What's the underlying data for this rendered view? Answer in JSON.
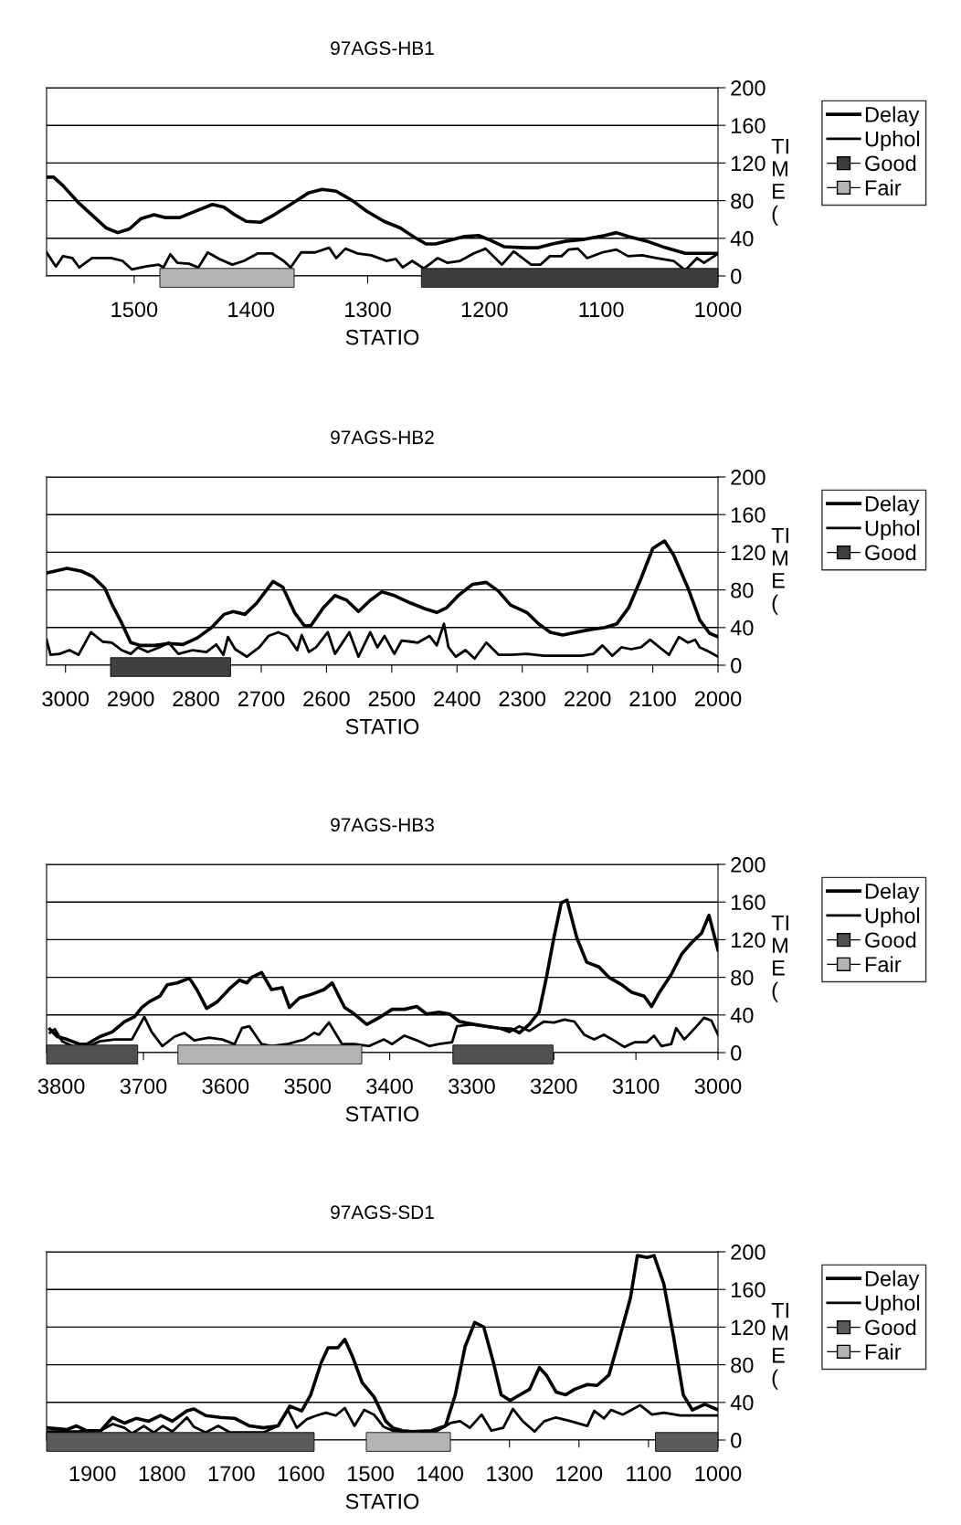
{
  "chart_data": [
    {
      "type": "line",
      "title": "97AGS-HB1",
      "xlabel": "STATIO",
      "ylabel": "TI\nM\nE\n(",
      "xlim": [
        1575,
        1000
      ],
      "xticks": [
        1500,
        1400,
        1300,
        1200,
        1100,
        1000
      ],
      "ylim": [
        0,
        200
      ],
      "yticks": [
        0,
        40,
        80,
        120,
        160,
        200
      ],
      "grid": "y",
      "legend": "right",
      "series": [
        {
          "name": "Delay",
          "color": "#000000",
          "x": [
            1575,
            1569,
            1561,
            1547,
            1532,
            1524,
            1514,
            1504,
            1494,
            1483,
            1473,
            1461,
            1447,
            1433,
            1423,
            1414,
            1404,
            1392,
            1380,
            1366,
            1351,
            1339,
            1327,
            1313,
            1301,
            1286,
            1272,
            1260,
            1250,
            1242,
            1229,
            1217,
            1205,
            1195,
            1183,
            1166,
            1154,
            1142,
            1130,
            1114,
            1097,
            1087,
            1077,
            1061,
            1045,
            1028,
            1016,
            1001
          ],
          "values": [
            105,
            105,
            96,
            77,
            60,
            51,
            46,
            50,
            61,
            65,
            62,
            62,
            69,
            76,
            73,
            65,
            58,
            57,
            65,
            76,
            88,
            92,
            90,
            80,
            69,
            58,
            51,
            41,
            34,
            34,
            38,
            42,
            43,
            38,
            31,
            30,
            30,
            34,
            37,
            39,
            43,
            46,
            42,
            37,
            30,
            24,
            24,
            24
          ]
        },
        {
          "name": "Uphol",
          "color": "#000000",
          "x": [
            1575,
            1567,
            1561,
            1553,
            1547,
            1536,
            1520,
            1510,
            1502,
            1490,
            1479,
            1475,
            1469,
            1463,
            1453,
            1445,
            1437,
            1427,
            1416,
            1406,
            1394,
            1382,
            1372,
            1366,
            1357,
            1345,
            1333,
            1327,
            1319,
            1309,
            1297,
            1284,
            1276,
            1270,
            1262,
            1252,
            1240,
            1232,
            1221,
            1209,
            1199,
            1185,
            1175,
            1160,
            1152,
            1144,
            1134,
            1128,
            1120,
            1112,
            1099,
            1087,
            1077,
            1065,
            1053,
            1038,
            1028,
            1018,
            1012,
            1001
          ],
          "values": [
            25,
            10,
            21,
            19,
            9,
            19,
            19,
            16,
            7,
            10,
            12,
            9,
            23,
            14,
            13,
            9,
            25,
            18,
            12,
            16,
            24,
            24,
            16,
            9,
            25,
            25,
            30,
            19,
            29,
            24,
            22,
            16,
            18,
            9,
            16,
            8,
            19,
            14,
            16,
            24,
            29,
            12,
            26,
            12,
            12,
            21,
            21,
            28,
            29,
            19,
            25,
            28,
            21,
            22,
            19,
            16,
            6,
            19,
            14,
            23
          ]
        }
      ],
      "bands": [
        {
          "axis": "x",
          "from": 1254,
          "to": 1000,
          "label": "Good",
          "color": "#3c3c3c"
        },
        {
          "axis": "x",
          "from": 1478,
          "to": 1363,
          "label": "Fair",
          "color": "#b4b4b4"
        }
      ]
    },
    {
      "type": "line",
      "title": "97AGS-HB2",
      "xlabel": "STATIO",
      "ylabel": "TI\nM\nE\n(",
      "xlim": [
        3029,
        2000
      ],
      "xticks": [
        3000,
        2900,
        2800,
        2700,
        2600,
        2500,
        2400,
        2300,
        2200,
        2100,
        2000
      ],
      "ylim": [
        0,
        200
      ],
      "yticks": [
        0,
        40,
        80,
        120,
        160,
        200
      ],
      "grid": "y",
      "legend": "right",
      "series": [
        {
          "name": "Delay",
          "color": "#000000",
          "x": [
            3029,
            3016,
            2998,
            2976,
            2958,
            2940,
            2929,
            2914,
            2900,
            2885,
            2863,
            2842,
            2820,
            2798,
            2776,
            2757,
            2743,
            2725,
            2707,
            2682,
            2667,
            2649,
            2634,
            2624,
            2605,
            2587,
            2569,
            2551,
            2533,
            2515,
            2496,
            2471,
            2449,
            2431,
            2416,
            2398,
            2376,
            2355,
            2337,
            2318,
            2293,
            2275,
            2257,
            2238,
            2217,
            2195,
            2173,
            2155,
            2137,
            2118,
            2100,
            2082,
            2068,
            2046,
            2028,
            2013,
            2000
          ],
          "values": [
            98,
            100,
            103,
            100,
            94,
            82,
            65,
            45,
            24,
            21,
            21,
            23,
            22,
            29,
            40,
            54,
            57,
            54,
            66,
            89,
            83,
            56,
            42,
            42,
            61,
            74,
            69,
            57,
            69,
            78,
            74,
            66,
            60,
            56,
            61,
            74,
            86,
            88,
            79,
            64,
            56,
            44,
            35,
            32,
            35,
            38,
            40,
            44,
            61,
            92,
            124,
            132,
            117,
            82,
            48,
            34,
            30
          ]
        },
        {
          "name": "Uphol",
          "color": "#000000",
          "x": [
            3029,
            3023,
            3009,
            2994,
            2980,
            2961,
            2943,
            2929,
            2914,
            2900,
            2889,
            2874,
            2856,
            2842,
            2827,
            2805,
            2784,
            2769,
            2758,
            2751,
            2740,
            2722,
            2703,
            2689,
            2674,
            2660,
            2645,
            2638,
            2627,
            2616,
            2598,
            2587,
            2565,
            2551,
            2533,
            2522,
            2511,
            2496,
            2485,
            2471,
            2460,
            2442,
            2431,
            2420,
            2413,
            2402,
            2387,
            2373,
            2355,
            2336,
            2318,
            2293,
            2267,
            2238,
            2209,
            2191,
            2177,
            2162,
            2148,
            2133,
            2118,
            2104,
            2086,
            2075,
            2060,
            2046,
            2035,
            2028,
            2013,
            2000
          ],
          "values": [
            27,
            11,
            12,
            16,
            11,
            35,
            25,
            24,
            16,
            12,
            19,
            14,
            19,
            24,
            12,
            16,
            14,
            22,
            11,
            30,
            17,
            9,
            19,
            31,
            35,
            31,
            16,
            32,
            14,
            19,
            35,
            12,
            35,
            9,
            35,
            19,
            31,
            12,
            26,
            25,
            24,
            31,
            21,
            44,
            19,
            9,
            16,
            7,
            24,
            11,
            11,
            12,
            10,
            10,
            10,
            12,
            21,
            10,
            19,
            17,
            19,
            27,
            17,
            11,
            30,
            24,
            27,
            19,
            14,
            9
          ]
        }
      ],
      "bands": [
        {
          "axis": "x",
          "from": 2931,
          "to": 2747,
          "label": "Good",
          "color": "#404040"
        }
      ]
    },
    {
      "type": "line",
      "title": "97AGS-HB3",
      "xlabel": "STATIO",
      "ylabel": "TI\nM\nE\n(",
      "xlim": [
        3818,
        3000
      ],
      "xticks": [
        3800,
        3700,
        3600,
        3500,
        3400,
        3300,
        3200,
        3100,
        3000
      ],
      "ylim": [
        0,
        200
      ],
      "yticks": [
        0,
        40,
        80,
        120,
        160,
        200
      ],
      "grid": "y",
      "legend": "right",
      "series": [
        {
          "name": "Delay",
          "color": "#000000",
          "x": [
            3814,
            3805,
            3793,
            3778,
            3769,
            3753,
            3738,
            3723,
            3711,
            3702,
            3693,
            3680,
            3671,
            3659,
            3644,
            3635,
            3623,
            3610,
            3595,
            3583,
            3574,
            3568,
            3556,
            3544,
            3531,
            3522,
            3510,
            3495,
            3480,
            3470,
            3455,
            3443,
            3428,
            3413,
            3397,
            3382,
            3367,
            3355,
            3340,
            3327,
            3315,
            3297,
            3282,
            3267,
            3251,
            3242,
            3230,
            3218,
            3209,
            3200,
            3191,
            3184,
            3172,
            3160,
            3145,
            3133,
            3117,
            3105,
            3090,
            3081,
            3072,
            3057,
            3044,
            3032,
            3020,
            3011,
            3000
          ],
          "values": [
            25,
            17,
            14,
            9,
            9,
            17,
            22,
            33,
            38,
            48,
            54,
            60,
            72,
            74,
            79,
            67,
            47,
            54,
            68,
            77,
            74,
            80,
            85,
            67,
            69,
            48,
            58,
            62,
            67,
            74,
            48,
            41,
            30,
            37,
            46,
            46,
            49,
            41,
            43,
            41,
            33,
            30,
            28,
            26,
            25,
            21,
            30,
            43,
            80,
            122,
            159,
            162,
            122,
            96,
            91,
            80,
            72,
            64,
            60,
            49,
            63,
            83,
            105,
            117,
            127,
            146,
            109
          ]
        },
        {
          "name": "Uphol",
          "color": "#000000",
          "x": [
            3814,
            3808,
            3799,
            3784,
            3769,
            3753,
            3735,
            3714,
            3699,
            3690,
            3677,
            3662,
            3650,
            3638,
            3620,
            3604,
            3589,
            3580,
            3571,
            3556,
            3544,
            3525,
            3504,
            3492,
            3486,
            3474,
            3458,
            3443,
            3425,
            3407,
            3397,
            3382,
            3367,
            3352,
            3340,
            3324,
            3318,
            3300,
            3285,
            3267,
            3254,
            3242,
            3230,
            3212,
            3200,
            3187,
            3175,
            3163,
            3151,
            3139,
            3127,
            3114,
            3102,
            3087,
            3078,
            3069,
            3057,
            3051,
            3041,
            3026,
            3017,
            3008,
            3000
          ],
          "values": [
            21,
            25,
            12,
            6,
            6,
            12,
            14,
            14,
            38,
            22,
            7,
            17,
            21,
            13,
            16,
            14,
            9,
            26,
            28,
            9,
            7,
            9,
            14,
            21,
            19,
            32,
            9,
            9,
            7,
            14,
            9,
            18,
            13,
            7,
            9,
            11,
            28,
            30,
            28,
            26,
            22,
            28,
            23,
            33,
            32,
            35,
            33,
            19,
            14,
            19,
            13,
            6,
            11,
            11,
            18,
            7,
            9,
            26,
            14,
            28,
            37,
            34,
            19
          ]
        }
      ],
      "bands": [
        {
          "axis": "x",
          "from": 3818,
          "to": 3707,
          "label": "Good",
          "color": "#505050"
        },
        {
          "axis": "x",
          "from": 3658,
          "to": 3434,
          "label": "Fair",
          "color": "#b4b4b4"
        },
        {
          "axis": "x",
          "from": 3323,
          "to": 3201,
          "label": null,
          "color": "#505050"
        }
      ]
    },
    {
      "type": "line",
      "title": "97AGS-SD1",
      "xlabel": "STATIO",
      "ylabel": "TI\nM\nE\n(",
      "xlim": [
        1966,
        1000
      ],
      "xticks": [
        1900,
        1800,
        1700,
        1600,
        1500,
        1400,
        1300,
        1200,
        1100,
        1000
      ],
      "ylim": [
        0,
        200
      ],
      "yticks": [
        0,
        40,
        80,
        120,
        160,
        200
      ],
      "grid": "y",
      "legend": "right",
      "series": [
        {
          "name": "Delay",
          "color": "#000000",
          "x": [
            1966,
            1937,
            1923,
            1909,
            1888,
            1871,
            1854,
            1837,
            1819,
            1802,
            1785,
            1764,
            1754,
            1737,
            1716,
            1695,
            1674,
            1654,
            1633,
            1616,
            1599,
            1586,
            1571,
            1561,
            1547,
            1537,
            1526,
            1512,
            1495,
            1478,
            1468,
            1454,
            1440,
            1412,
            1392,
            1378,
            1364,
            1350,
            1337,
            1323,
            1312,
            1299,
            1285,
            1271,
            1257,
            1247,
            1233,
            1219,
            1206,
            1188,
            1174,
            1157,
            1143,
            1126,
            1116,
            1102,
            1092,
            1078,
            1064,
            1050,
            1037,
            1019,
            1000
          ],
          "values": [
            13,
            11,
            15,
            10,
            10,
            24,
            18,
            23,
            20,
            26,
            20,
            31,
            33,
            26,
            24,
            23,
            15,
            13,
            15,
            36,
            31,
            48,
            82,
            98,
            98,
            107,
            89,
            61,
            46,
            20,
            13,
            10,
            9,
            10,
            15,
            48,
            99,
            125,
            120,
            82,
            48,
            42,
            48,
            54,
            77,
            69,
            51,
            48,
            54,
            59,
            58,
            69,
            105,
            151,
            196,
            194,
            196,
            166,
            110,
            48,
            32,
            38,
            32
          ]
        },
        {
          "name": "Uphol",
          "color": "#000000",
          "x": [
            1966,
            1923,
            1888,
            1871,
            1854,
            1843,
            1826,
            1812,
            1799,
            1785,
            1764,
            1754,
            1737,
            1719,
            1702,
            1681,
            1654,
            1633,
            1619,
            1606,
            1592,
            1578,
            1564,
            1550,
            1537,
            1523,
            1509,
            1495,
            1481,
            1468,
            1440,
            1406,
            1385,
            1371,
            1357,
            1340,
            1326,
            1309,
            1295,
            1281,
            1264,
            1250,
            1233,
            1212,
            1188,
            1178,
            1164,
            1154,
            1137,
            1112,
            1095,
            1078,
            1054,
            1026,
            1000
          ],
          "values": [
            9,
            9,
            10,
            17,
            13,
            7,
            15,
            8,
            15,
            9,
            24,
            14,
            8,
            15,
            8,
            8,
            8,
            15,
            32,
            13,
            22,
            26,
            29,
            26,
            34,
            15,
            32,
            27,
            14,
            10,
            8,
            9,
            18,
            20,
            13,
            27,
            10,
            13,
            33,
            20,
            9,
            20,
            24,
            20,
            15,
            31,
            23,
            32,
            27,
            37,
            27,
            29,
            26,
            26,
            26
          ]
        }
      ],
      "bands": [
        {
          "axis": "x",
          "from": 1966,
          "to": 1581,
          "label": "Good",
          "color": "#5a5a5a"
        },
        {
          "axis": "x",
          "from": 1506,
          "to": 1385,
          "label": "Fair",
          "color": "#b4b4b4"
        },
        {
          "axis": "x",
          "from": 1090,
          "to": 1000,
          "label": null,
          "color": "#5a5a5a"
        }
      ]
    }
  ]
}
